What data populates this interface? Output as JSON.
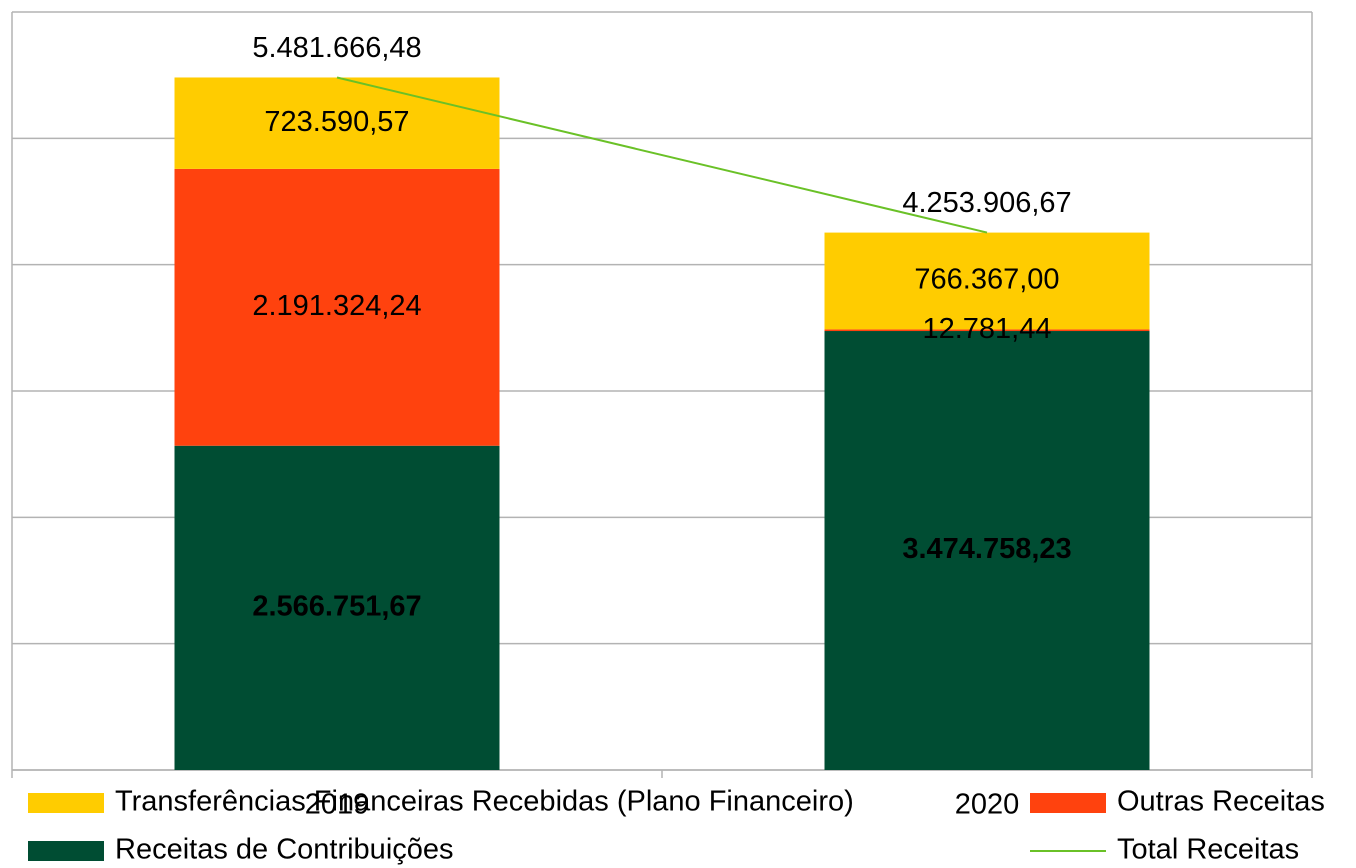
{
  "chart_data": {
    "type": "bar",
    "stacked": true,
    "categories": [
      "2019",
      "2020"
    ],
    "series": [
      {
        "name": "Receitas de Contribuições",
        "color": "#004d33",
        "label_color": "#ffffff",
        "values": [
          2566751.67,
          3474758.23
        ],
        "value_labels": [
          "2.566.751,67",
          "3.474.758,23"
        ]
      },
      {
        "name": "Outras Receitas",
        "color": "#ff420e",
        "values": [
          2191324.24,
          12781.44
        ],
        "value_labels": [
          "2.191.324,24",
          "12.781,44"
        ]
      },
      {
        "name": "Transferências Financeiras Recebidas (Plano Financeiro)",
        "color": "#ffcc00",
        "values": [
          723590.57,
          766367.0
        ],
        "value_labels": [
          "723.590,57",
          "766.367,00"
        ]
      },
      {
        "name": "Total Receitas",
        "type": "line",
        "color": "#6ac127",
        "values": [
          5481666.48,
          4253906.67
        ],
        "value_labels": [
          "5.481.666,48",
          "4.253.906,67"
        ]
      }
    ],
    "ylim": [
      0,
      6000000
    ],
    "yticks": [
      0,
      1000000,
      2000000,
      3000000,
      4000000,
      5000000,
      6000000
    ],
    "grid": true
  }
}
